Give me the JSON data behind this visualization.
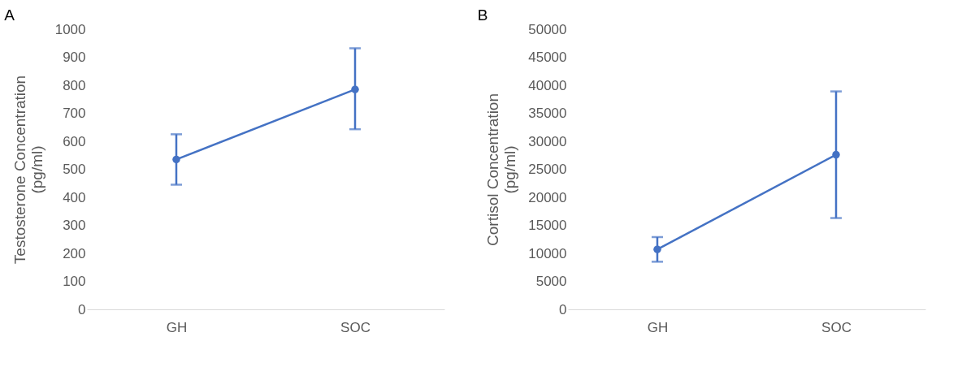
{
  "chart_data": [
    {
      "type": "line",
      "title": "A",
      "ylabel": "Testosterone Concentration\n(pg/ml)",
      "categories": [
        "GH",
        "SOC"
      ],
      "ylim": [
        0,
        1000
      ],
      "yticks": [
        0,
        100,
        200,
        300,
        400,
        500,
        600,
        700,
        800,
        900,
        1000
      ],
      "grid": false,
      "marker": "circle",
      "line_style": "solid",
      "series": [
        {
          "color": "#4472c4",
          "values": [
            535,
            785
          ],
          "errors": [
            [
              445,
              625
            ],
            [
              643,
              932
            ]
          ]
        }
      ]
    },
    {
      "type": "line",
      "title": "B",
      "ylabel": "Cortisol Concentration\n(pg/ml)",
      "categories": [
        "GH",
        "SOC"
      ],
      "ylim": [
        0,
        50000
      ],
      "yticks": [
        0,
        5000,
        10000,
        15000,
        20000,
        25000,
        30000,
        35000,
        40000,
        45000,
        50000
      ],
      "grid": false,
      "marker": "circle",
      "line_style": "solid",
      "series": [
        {
          "color": "#4472c4",
          "values": [
            10700,
            27600
          ],
          "errors": [
            [
              8500,
              12900
            ],
            [
              16300,
              38900
            ]
          ]
        }
      ]
    }
  ]
}
